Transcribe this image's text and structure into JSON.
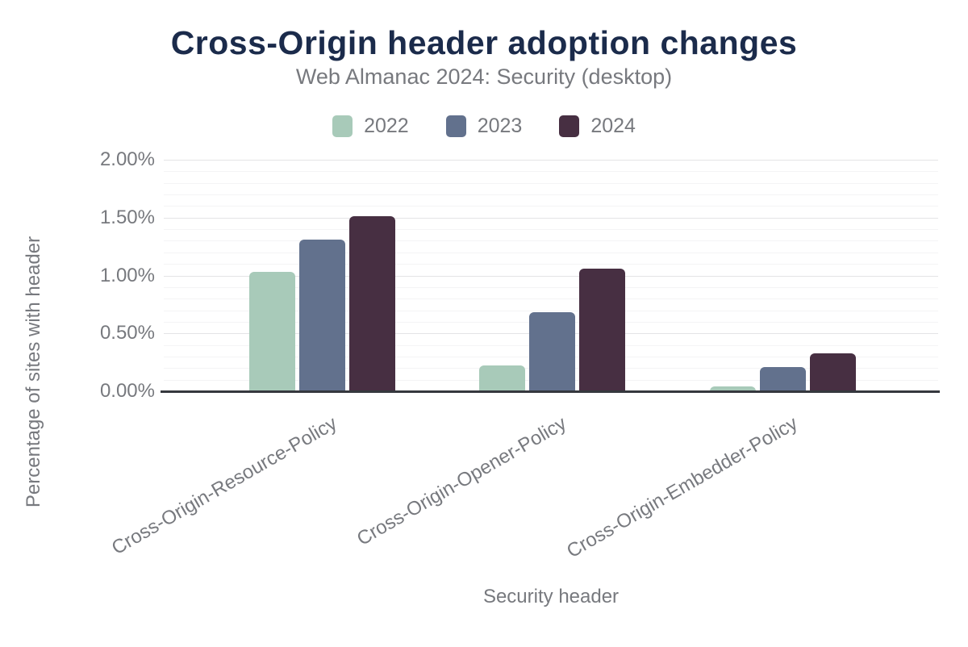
{
  "chart_data": {
    "type": "bar",
    "title": "Cross-Origin header adoption changes",
    "subtitle": "Web Almanac 2024: Security (desktop)",
    "xlabel": "Security header",
    "ylabel": "Percentage of sites with header",
    "categories": [
      "Cross-Origin-Resource-Policy",
      "Cross-Origin-Opener-Policy",
      "Cross-Origin-Embedder-Policy"
    ],
    "series": [
      {
        "name": "2022",
        "color": "#a8cab9",
        "values": [
          1.03,
          0.22,
          0.04
        ]
      },
      {
        "name": "2023",
        "color": "#62718d",
        "values": [
          1.31,
          0.68,
          0.21
        ]
      },
      {
        "name": "2024",
        "color": "#472f42",
        "values": [
          1.51,
          1.06,
          0.33
        ]
      }
    ],
    "y_axis": {
      "min": 0,
      "max": 2,
      "major_step": 0.5,
      "minor_step": 0.1
    },
    "y_tick_labels": [
      "0.00%",
      "0.50%",
      "1.00%",
      "1.50%",
      "2.00%"
    ],
    "legend_position": "top",
    "grid": "on"
  },
  "colors": {
    "title_text": "#1b2b4b",
    "axis_text": "#77797e",
    "axis_line": "#35383e",
    "major_grid": "#e4e4e6",
    "minor_grid": "#f4f4f5",
    "background": "#ffffff"
  }
}
